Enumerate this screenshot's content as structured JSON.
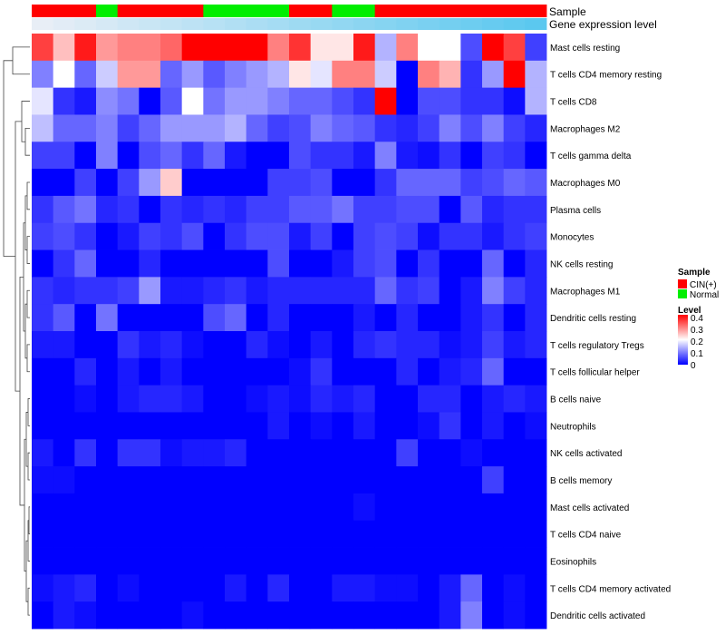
{
  "chart_data": {
    "type": "heatmap",
    "title": "",
    "annotation_tracks": [
      "Sample",
      "Gene expression level"
    ],
    "rows": [
      "Mast cells resting",
      "T cells CD4 memory resting",
      "T cells CD8",
      "Macrophages M2",
      "T cells gamma delta",
      "Macrophages M0",
      "Plasma cells",
      "Monocytes",
      "NK cells resting",
      "Macrophages M1",
      "Dendritic cells resting",
      "T cells regulatory  Tregs",
      "T cells follicular helper",
      "B cells naive",
      "Neutrophils",
      "NK cells activated",
      "B cells memory",
      "Mast cells activated",
      "T cells CD4 naive",
      "Eosinophils",
      "T cells CD4 memory activated",
      "Dendritic cells activated"
    ],
    "sample_groups": [
      "CIN",
      "CIN",
      "CIN",
      "Normal",
      "CIN",
      "CIN",
      "CIN",
      "CIN",
      "Normal",
      "Normal",
      "Normal",
      "Normal",
      "CIN",
      "CIN",
      "Normal",
      "Normal",
      "CIN",
      "CIN",
      "CIN",
      "CIN",
      "CIN",
      "CIN",
      "CIN",
      "CIN"
    ],
    "gene_expression_level": [
      0.0,
      0.02,
      0.04,
      0.06,
      0.08,
      0.1,
      0.12,
      0.14,
      0.16,
      0.18,
      0.2,
      0.22,
      0.24,
      0.26,
      0.28,
      0.3,
      0.32,
      0.34,
      0.36,
      0.38,
      0.4,
      0.42,
      0.44,
      0.46
    ],
    "values": [
      [
        0.35,
        0.25,
        0.38,
        0.28,
        0.3,
        0.3,
        0.32,
        0.4,
        0.4,
        0.4,
        0.4,
        0.3,
        0.36,
        0.22,
        0.22,
        0.38,
        0.14,
        0.3,
        0.2,
        0.2,
        0.06,
        0.4,
        0.35,
        0.05
      ],
      [
        0.1,
        0.2,
        0.08,
        0.16,
        0.28,
        0.28,
        0.08,
        0.12,
        0.07,
        0.1,
        0.12,
        0.14,
        0.22,
        0.18,
        0.3,
        0.3,
        0.16,
        0.0,
        0.3,
        0.26,
        0.04,
        0.12,
        0.42,
        0.14
      ],
      [
        0.18,
        0.04,
        0.02,
        0.11,
        0.09,
        0.0,
        0.07,
        0.2,
        0.09,
        0.12,
        0.12,
        0.1,
        0.08,
        0.08,
        0.06,
        0.04,
        0.4,
        0.0,
        0.06,
        0.06,
        0.04,
        0.04,
        0.01,
        0.14
      ],
      [
        0.15,
        0.08,
        0.08,
        0.1,
        0.05,
        0.08,
        0.12,
        0.12,
        0.12,
        0.14,
        0.08,
        0.05,
        0.06,
        0.1,
        0.08,
        0.07,
        0.04,
        0.03,
        0.05,
        0.1,
        0.06,
        0.1,
        0.05,
        0.03
      ],
      [
        0.05,
        0.05,
        0.0,
        0.1,
        0.0,
        0.06,
        0.08,
        0.04,
        0.08,
        0.02,
        0.0,
        0.0,
        0.06,
        0.04,
        0.04,
        0.02,
        0.1,
        0.02,
        0.01,
        0.04,
        0.0,
        0.05,
        0.04,
        0.0
      ],
      [
        0.0,
        0.0,
        0.05,
        0.0,
        0.05,
        0.12,
        0.24,
        0.0,
        0.0,
        0.0,
        0.0,
        0.05,
        0.05,
        0.06,
        0.0,
        0.0,
        0.04,
        0.08,
        0.08,
        0.08,
        0.05,
        0.06,
        0.08,
        0.07
      ],
      [
        0.04,
        0.07,
        0.09,
        0.03,
        0.04,
        0.0,
        0.04,
        0.03,
        0.04,
        0.03,
        0.05,
        0.05,
        0.07,
        0.07,
        0.09,
        0.05,
        0.05,
        0.06,
        0.06,
        0.0,
        0.07,
        0.03,
        0.04,
        0.04
      ],
      [
        0.05,
        0.06,
        0.04,
        0.0,
        0.02,
        0.05,
        0.04,
        0.06,
        0.0,
        0.04,
        0.06,
        0.06,
        0.02,
        0.05,
        0.0,
        0.05,
        0.06,
        0.05,
        0.01,
        0.04,
        0.04,
        0.02,
        0.04,
        0.05
      ],
      [
        0.0,
        0.04,
        0.08,
        0.0,
        0.0,
        0.03,
        0.0,
        0.0,
        0.0,
        0.0,
        0.0,
        0.06,
        0.0,
        0.0,
        0.02,
        0.05,
        0.06,
        0.0,
        0.04,
        0.0,
        0.0,
        0.08,
        0.0,
        0.03
      ],
      [
        0.04,
        0.03,
        0.04,
        0.04,
        0.05,
        0.12,
        0.02,
        0.02,
        0.03,
        0.04,
        0.02,
        0.03,
        0.03,
        0.03,
        0.03,
        0.03,
        0.08,
        0.04,
        0.05,
        0.0,
        0.02,
        0.1,
        0.05,
        0.03
      ],
      [
        0.04,
        0.07,
        0.0,
        0.09,
        0.0,
        0.0,
        0.0,
        0.0,
        0.06,
        0.08,
        0.0,
        0.03,
        0.0,
        0.0,
        0.0,
        0.02,
        0.0,
        0.03,
        0.0,
        0.0,
        0.02,
        0.04,
        0.0,
        0.03
      ],
      [
        0.02,
        0.02,
        0.0,
        0.0,
        0.04,
        0.02,
        0.03,
        0.01,
        0.0,
        0.0,
        0.03,
        0.01,
        0.0,
        0.02,
        0.0,
        0.03,
        0.04,
        0.03,
        0.03,
        0.01,
        0.02,
        0.05,
        0.02,
        0.03
      ],
      [
        0.0,
        0.0,
        0.03,
        0.0,
        0.02,
        0.0,
        0.02,
        0.0,
        0.0,
        0.0,
        0.0,
        0.0,
        0.01,
        0.04,
        0.0,
        0.0,
        0.0,
        0.03,
        0.0,
        0.02,
        0.03,
        0.08,
        0.0,
        0.0
      ],
      [
        0.0,
        0.0,
        0.01,
        0.0,
        0.02,
        0.03,
        0.03,
        0.02,
        0.0,
        0.0,
        0.01,
        0.02,
        0.01,
        0.03,
        0.02,
        0.03,
        0.0,
        0.0,
        0.03,
        0.03,
        0.0,
        0.02,
        0.03,
        0.02
      ],
      [
        0.0,
        0.0,
        0.0,
        0.0,
        0.0,
        0.0,
        0.0,
        0.0,
        0.0,
        0.0,
        0.0,
        0.02,
        0.0,
        0.01,
        0.0,
        0.02,
        0.0,
        0.0,
        0.01,
        0.04,
        0.0,
        0.02,
        0.0,
        0.01
      ],
      [
        0.02,
        0.0,
        0.04,
        0.0,
        0.04,
        0.04,
        0.01,
        0.02,
        0.02,
        0.03,
        0.0,
        0.0,
        0.0,
        0.0,
        0.0,
        0.0,
        0.0,
        0.05,
        0.0,
        0.0,
        0.01,
        0.0,
        0.0,
        0.0
      ],
      [
        0.01,
        0.01,
        0.0,
        0.0,
        0.0,
        0.0,
        0.0,
        0.0,
        0.0,
        0.0,
        0.0,
        0.0,
        0.0,
        0.0,
        0.0,
        0.0,
        0.0,
        0.0,
        0.0,
        0.0,
        0.0,
        0.05,
        0.0,
        0.0
      ],
      [
        0.0,
        0.0,
        0.0,
        0.0,
        0.0,
        0.0,
        0.0,
        0.0,
        0.0,
        0.0,
        0.0,
        0.0,
        0.0,
        0.0,
        0.0,
        0.01,
        0.0,
        0.0,
        0.0,
        0.0,
        0.0,
        0.0,
        0.0,
        0.0
      ],
      [
        0.0,
        0.0,
        0.0,
        0.0,
        0.0,
        0.0,
        0.0,
        0.0,
        0.0,
        0.0,
        0.0,
        0.0,
        0.0,
        0.0,
        0.0,
        0.0,
        0.0,
        0.0,
        0.0,
        0.0,
        0.0,
        0.0,
        0.0,
        0.0
      ],
      [
        0.0,
        0.0,
        0.0,
        0.0,
        0.0,
        0.0,
        0.0,
        0.0,
        0.0,
        0.0,
        0.0,
        0.0,
        0.0,
        0.0,
        0.0,
        0.0,
        0.0,
        0.0,
        0.0,
        0.0,
        0.0,
        0.0,
        0.0,
        0.0
      ],
      [
        0.01,
        0.02,
        0.03,
        0.0,
        0.01,
        0.0,
        0.0,
        0.0,
        0.0,
        0.02,
        0.0,
        0.03,
        0.0,
        0.0,
        0.02,
        0.02,
        0.01,
        0.01,
        0.0,
        0.02,
        0.08,
        0.0,
        0.01,
        0.0
      ],
      [
        0.0,
        0.02,
        0.01,
        0.0,
        0.0,
        0.0,
        0.0,
        0.01,
        0.0,
        0.0,
        0.0,
        0.0,
        0.0,
        0.0,
        0.0,
        0.0,
        0.0,
        0.0,
        0.0,
        0.02,
        0.1,
        0.0,
        0.01,
        0.0
      ]
    ],
    "legend": {
      "sample_title": "Sample",
      "sample_entries": [
        {
          "key": "CIN",
          "label": "CIN(+)",
          "color": "#ff0000"
        },
        {
          "key": "Normal",
          "label": "Normal",
          "color": "#00ee00"
        }
      ],
      "level_title": "Level",
      "level_ticks": [
        "0.4",
        "0.3",
        "0.2",
        "0.1",
        "0"
      ],
      "level_values": [
        0.4,
        0.3,
        0.2,
        0.1,
        0
      ],
      "level_min": 0,
      "level_max": 0.4
    },
    "colors": {
      "low": "#0000ff",
      "mid": "#ffffff",
      "high": "#ff0000",
      "gene_low": "#e8eef6",
      "gene_high": "#5bc8ef"
    }
  }
}
